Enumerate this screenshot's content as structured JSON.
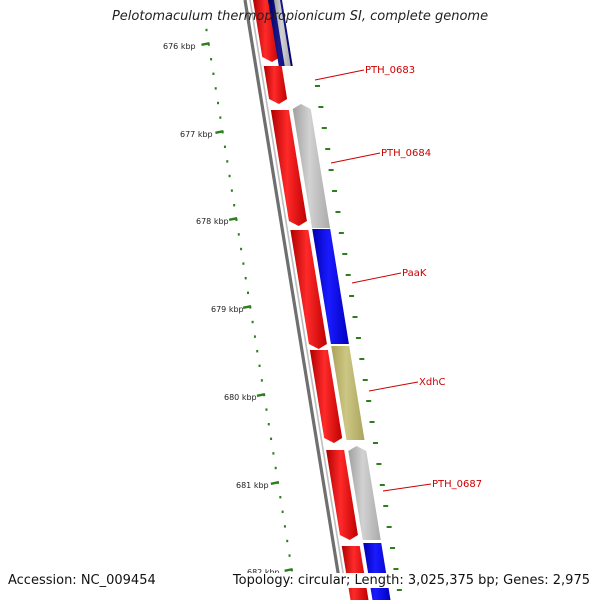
{
  "title": "Pelotomaculum thermopropionicum SI, complete genome",
  "footer": {
    "accession": "Accession: NC_009454",
    "summary": "Topology: circular; Length: 3,025,375 bp; Genes: 2,975"
  },
  "ruler": {
    "tick_labels": [
      "676 kbp",
      "677 kbp",
      "678 kbp",
      "679 kbp",
      "680 kbp",
      "681 kbp",
      "682 kbp"
    ]
  },
  "colors": {
    "forward_strand": "#ff0000",
    "reverse_blue": "#0000ff",
    "reverse_navy": "#000080",
    "reverse_grey": "#bbbbbb",
    "reverse_khaki": "#bdb76b",
    "label": "#cc0000",
    "ruler_tick": "#2e7d1e",
    "backbone": "#7a7a7a"
  },
  "gene_labels": [
    {
      "text": "PTH_0683"
    },
    {
      "text": "PTH_0684"
    },
    {
      "text": "PaaK"
    },
    {
      "text": "XdhC"
    },
    {
      "text": "PTH_0687"
    }
  ]
}
